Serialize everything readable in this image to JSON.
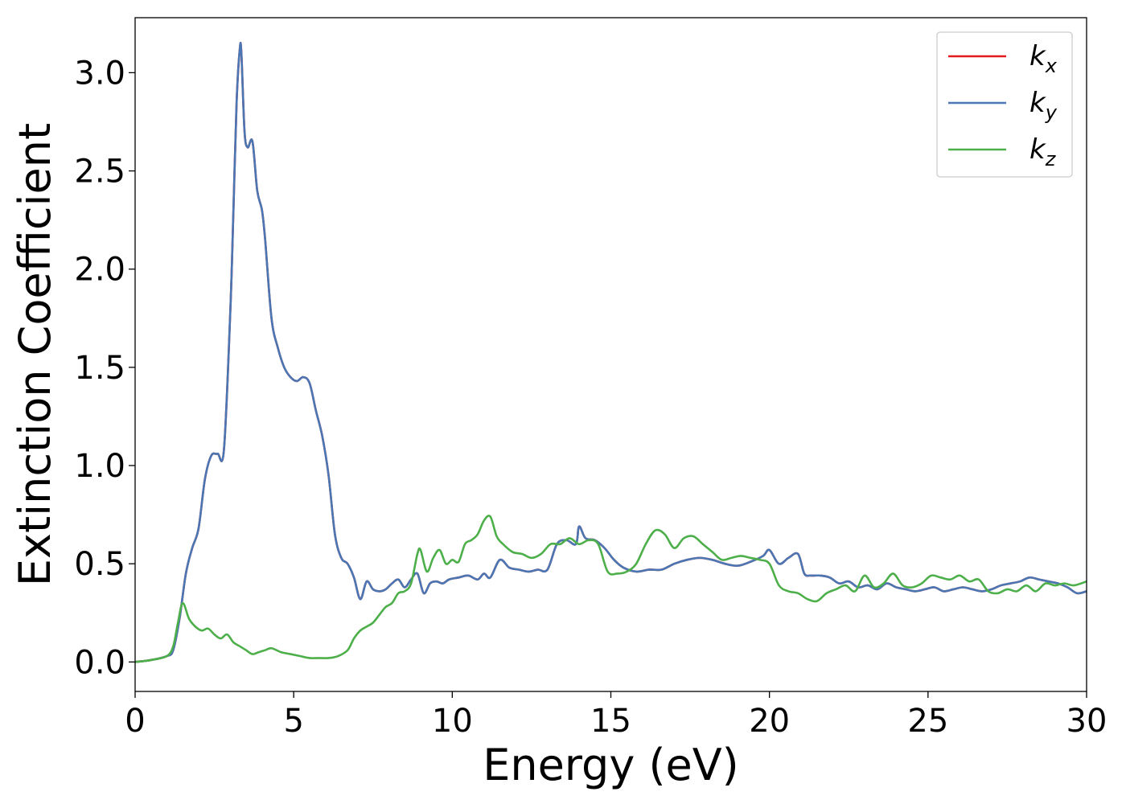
{
  "chart_data": {
    "type": "line",
    "title": "",
    "xlabel": "Energy (eV)",
    "ylabel": "Extinction Coefficient",
    "xlim": [
      0,
      30
    ],
    "ylim": [
      -0.15,
      3.28
    ],
    "xticks": [
      0,
      5,
      10,
      15,
      20,
      25,
      30
    ],
    "xtick_labels": [
      "0",
      "5",
      "10",
      "15",
      "20",
      "25",
      "30"
    ],
    "yticks": [
      0.0,
      0.5,
      1.0,
      1.5,
      2.0,
      2.5,
      3.0
    ],
    "ytick_labels": [
      "0.0",
      "0.5",
      "1.0",
      "1.5",
      "2.0",
      "2.5",
      "3.0"
    ],
    "grid": false,
    "legend_position": "top-right",
    "series": [
      {
        "name": "k",
        "subscript": "x",
        "color": "#e41a1c",
        "x": [
          0,
          0.5,
          1.0,
          1.2,
          1.4,
          1.6,
          1.8,
          2.0,
          2.2,
          2.4,
          2.6,
          2.8,
          3.0,
          3.1,
          3.2,
          3.3,
          3.35,
          3.45,
          3.55,
          3.7,
          3.85,
          4.0,
          4.1,
          4.3,
          4.5,
          4.7,
          4.9,
          5.1,
          5.3,
          5.5,
          5.7,
          5.9,
          6.1,
          6.3,
          6.5,
          6.7,
          6.9,
          7.1,
          7.3,
          7.5,
          7.7,
          7.9,
          8.1,
          8.3,
          8.5,
          8.7,
          8.9,
          9.1,
          9.3,
          9.5,
          9.7,
          9.9,
          10.2,
          10.5,
          10.8,
          11.0,
          11.2,
          11.5,
          11.8,
          12.1,
          12.4,
          12.7,
          13.0,
          13.3,
          13.6,
          13.9,
          14.0,
          14.2,
          14.5,
          14.8,
          15.1,
          15.4,
          15.8,
          16.2,
          16.6,
          17.0,
          17.4,
          17.8,
          18.2,
          18.6,
          19.0,
          19.4,
          19.8,
          20.0,
          20.3,
          20.6,
          20.9,
          21.1,
          21.3,
          21.6,
          21.9,
          22.2,
          22.5,
          22.8,
          23.1,
          23.4,
          23.7,
          24.0,
          24.3,
          24.6,
          24.9,
          25.2,
          25.5,
          25.8,
          26.1,
          26.4,
          26.7,
          27.0,
          27.3,
          27.6,
          27.9,
          28.2,
          28.5,
          28.8,
          29.1,
          29.4,
          29.7,
          30.0
        ],
        "y": [
          0.0,
          0.01,
          0.03,
          0.06,
          0.22,
          0.45,
          0.58,
          0.68,
          0.93,
          1.05,
          1.06,
          1.08,
          1.78,
          2.3,
          2.85,
          3.12,
          3.1,
          2.7,
          2.62,
          2.65,
          2.4,
          2.3,
          2.15,
          1.75,
          1.6,
          1.5,
          1.45,
          1.43,
          1.45,
          1.42,
          1.28,
          1.15,
          0.95,
          0.65,
          0.53,
          0.5,
          0.43,
          0.32,
          0.41,
          0.37,
          0.36,
          0.37,
          0.4,
          0.42,
          0.38,
          0.42,
          0.45,
          0.35,
          0.4,
          0.41,
          0.4,
          0.42,
          0.43,
          0.44,
          0.42,
          0.45,
          0.43,
          0.52,
          0.48,
          0.47,
          0.46,
          0.47,
          0.47,
          0.6,
          0.62,
          0.6,
          0.69,
          0.63,
          0.62,
          0.58,
          0.52,
          0.48,
          0.46,
          0.47,
          0.47,
          0.5,
          0.52,
          0.53,
          0.52,
          0.5,
          0.49,
          0.51,
          0.54,
          0.57,
          0.5,
          0.53,
          0.55,
          0.45,
          0.44,
          0.44,
          0.43,
          0.4,
          0.41,
          0.38,
          0.39,
          0.37,
          0.4,
          0.38,
          0.37,
          0.36,
          0.37,
          0.38,
          0.36,
          0.37,
          0.38,
          0.37,
          0.36,
          0.37,
          0.39,
          0.4,
          0.41,
          0.43,
          0.42,
          0.41,
          0.4,
          0.38,
          0.35,
          0.36
        ]
      },
      {
        "name": "k",
        "subscript": "y",
        "color": "#4a77b4",
        "x": [
          0,
          0.5,
          1.0,
          1.2,
          1.4,
          1.6,
          1.8,
          2.0,
          2.2,
          2.4,
          2.6,
          2.8,
          3.0,
          3.1,
          3.2,
          3.3,
          3.35,
          3.45,
          3.55,
          3.7,
          3.85,
          4.0,
          4.1,
          4.3,
          4.5,
          4.7,
          4.9,
          5.1,
          5.3,
          5.5,
          5.7,
          5.9,
          6.1,
          6.3,
          6.5,
          6.7,
          6.9,
          7.1,
          7.3,
          7.5,
          7.7,
          7.9,
          8.1,
          8.3,
          8.5,
          8.7,
          8.9,
          9.1,
          9.3,
          9.5,
          9.7,
          9.9,
          10.2,
          10.5,
          10.8,
          11.0,
          11.2,
          11.5,
          11.8,
          12.1,
          12.4,
          12.7,
          13.0,
          13.3,
          13.6,
          13.9,
          14.0,
          14.2,
          14.5,
          14.8,
          15.1,
          15.4,
          15.8,
          16.2,
          16.6,
          17.0,
          17.4,
          17.8,
          18.2,
          18.6,
          19.0,
          19.4,
          19.8,
          20.0,
          20.3,
          20.6,
          20.9,
          21.1,
          21.3,
          21.6,
          21.9,
          22.2,
          22.5,
          22.8,
          23.1,
          23.4,
          23.7,
          24.0,
          24.3,
          24.6,
          24.9,
          25.2,
          25.5,
          25.8,
          26.1,
          26.4,
          26.7,
          27.0,
          27.3,
          27.6,
          27.9,
          28.2,
          28.5,
          28.8,
          29.1,
          29.4,
          29.7,
          30.0
        ],
        "y": [
          0.0,
          0.01,
          0.03,
          0.06,
          0.22,
          0.45,
          0.58,
          0.68,
          0.93,
          1.05,
          1.06,
          1.08,
          1.78,
          2.3,
          2.85,
          3.12,
          3.1,
          2.7,
          2.62,
          2.65,
          2.4,
          2.3,
          2.15,
          1.75,
          1.6,
          1.5,
          1.45,
          1.43,
          1.45,
          1.42,
          1.28,
          1.15,
          0.95,
          0.65,
          0.53,
          0.5,
          0.43,
          0.32,
          0.41,
          0.37,
          0.36,
          0.37,
          0.4,
          0.42,
          0.38,
          0.42,
          0.45,
          0.35,
          0.4,
          0.41,
          0.4,
          0.42,
          0.43,
          0.44,
          0.42,
          0.45,
          0.43,
          0.52,
          0.48,
          0.47,
          0.46,
          0.47,
          0.47,
          0.6,
          0.62,
          0.6,
          0.69,
          0.63,
          0.62,
          0.58,
          0.52,
          0.48,
          0.46,
          0.47,
          0.47,
          0.5,
          0.52,
          0.53,
          0.52,
          0.5,
          0.49,
          0.51,
          0.54,
          0.57,
          0.5,
          0.53,
          0.55,
          0.45,
          0.44,
          0.44,
          0.43,
          0.4,
          0.41,
          0.38,
          0.39,
          0.37,
          0.4,
          0.38,
          0.37,
          0.36,
          0.37,
          0.38,
          0.36,
          0.37,
          0.38,
          0.37,
          0.36,
          0.37,
          0.39,
          0.4,
          0.41,
          0.43,
          0.42,
          0.41,
          0.4,
          0.38,
          0.35,
          0.36
        ]
      },
      {
        "name": "k",
        "subscript": "z",
        "color": "#4daf4a",
        "x": [
          0,
          0.5,
          1.0,
          1.2,
          1.35,
          1.5,
          1.7,
          1.9,
          2.1,
          2.3,
          2.5,
          2.7,
          2.9,
          3.1,
          3.3,
          3.5,
          3.7,
          3.9,
          4.1,
          4.3,
          4.6,
          4.9,
          5.2,
          5.5,
          5.8,
          6.1,
          6.4,
          6.7,
          6.9,
          7.1,
          7.3,
          7.5,
          7.7,
          7.9,
          8.1,
          8.3,
          8.5,
          8.7,
          8.9,
          9.0,
          9.2,
          9.4,
          9.6,
          9.8,
          10.0,
          10.2,
          10.4,
          10.6,
          10.8,
          11.0,
          11.2,
          11.4,
          11.6,
          11.9,
          12.2,
          12.5,
          12.8,
          13.1,
          13.4,
          13.7,
          14.0,
          14.3,
          14.6,
          14.9,
          15.2,
          15.5,
          15.8,
          16.1,
          16.4,
          16.7,
          17.0,
          17.3,
          17.6,
          17.9,
          18.2,
          18.5,
          18.8,
          19.1,
          19.4,
          19.7,
          20.0,
          20.3,
          20.6,
          20.9,
          21.2,
          21.5,
          21.8,
          22.1,
          22.4,
          22.7,
          23.0,
          23.3,
          23.6,
          23.9,
          24.2,
          24.5,
          24.8,
          25.1,
          25.4,
          25.7,
          26.0,
          26.3,
          26.6,
          26.9,
          27.2,
          27.5,
          27.8,
          28.1,
          28.4,
          28.7,
          29.0,
          29.3,
          29.6,
          30.0
        ],
        "y": [
          0.0,
          0.01,
          0.03,
          0.08,
          0.2,
          0.3,
          0.22,
          0.18,
          0.16,
          0.17,
          0.14,
          0.12,
          0.14,
          0.1,
          0.08,
          0.06,
          0.04,
          0.05,
          0.06,
          0.07,
          0.05,
          0.04,
          0.03,
          0.02,
          0.02,
          0.02,
          0.03,
          0.06,
          0.12,
          0.16,
          0.18,
          0.2,
          0.24,
          0.28,
          0.3,
          0.35,
          0.36,
          0.4,
          0.55,
          0.57,
          0.46,
          0.53,
          0.57,
          0.5,
          0.52,
          0.51,
          0.6,
          0.62,
          0.65,
          0.72,
          0.74,
          0.64,
          0.6,
          0.56,
          0.55,
          0.53,
          0.55,
          0.6,
          0.6,
          0.63,
          0.6,
          0.62,
          0.6,
          0.46,
          0.45,
          0.46,
          0.5,
          0.6,
          0.67,
          0.65,
          0.58,
          0.63,
          0.64,
          0.6,
          0.56,
          0.52,
          0.53,
          0.54,
          0.53,
          0.52,
          0.5,
          0.39,
          0.36,
          0.35,
          0.32,
          0.31,
          0.35,
          0.37,
          0.39,
          0.36,
          0.44,
          0.38,
          0.4,
          0.45,
          0.39,
          0.38,
          0.4,
          0.44,
          0.43,
          0.42,
          0.44,
          0.41,
          0.42,
          0.36,
          0.35,
          0.37,
          0.36,
          0.39,
          0.36,
          0.4,
          0.39,
          0.4,
          0.39,
          0.41
        ]
      }
    ]
  }
}
